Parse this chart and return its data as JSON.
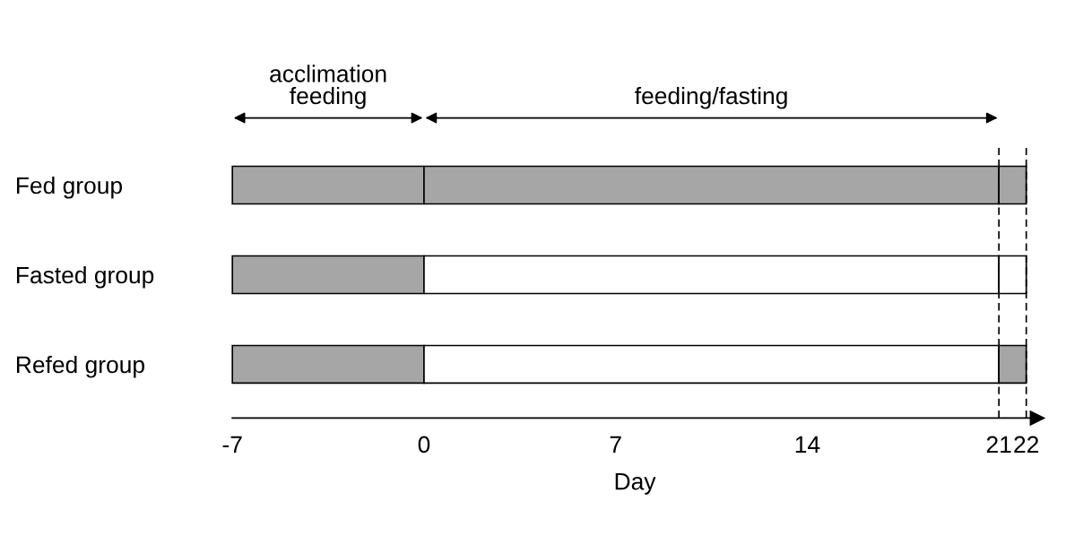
{
  "chart_data": {
    "type": "bar",
    "orientation": "horizontal",
    "categories": [
      "Fed group",
      "Fasted group",
      "Refed group"
    ],
    "series": [
      {
        "colors": [
          "#a6a6a6",
          "#a6a6a6",
          "#a6a6a6"
        ],
        "base": [
          -7,
          -7,
          -7
        ],
        "values": [
          7,
          7,
          7
        ]
      },
      {
        "colors": [
          "#a6a6a6",
          "#ffffff",
          "#ffffff"
        ],
        "base": [
          0,
          0,
          0
        ],
        "values": [
          21,
          21,
          21
        ]
      },
      {
        "colors": [
          "#a6a6a6",
          "#ffffff",
          "#a6a6a6"
        ],
        "base": [
          21,
          21,
          21
        ],
        "values": [
          1,
          1,
          1
        ]
      }
    ],
    "xlabel": "Day",
    "xlim": [
      -7,
      22.4
    ],
    "xticks": [
      -7,
      0,
      7,
      14,
      21,
      22
    ],
    "annotations": [
      "acclimation\nfeeding",
      "feeding/fasting"
    ],
    "ref_lines": [
      {
        "axis": "x",
        "value": 21,
        "line_style": "dashed",
        "color": "#000000"
      },
      {
        "axis": "x",
        "value": 22,
        "line_style": "dashed",
        "color": "#000000"
      }
    ],
    "grid": false,
    "legend": false
  }
}
